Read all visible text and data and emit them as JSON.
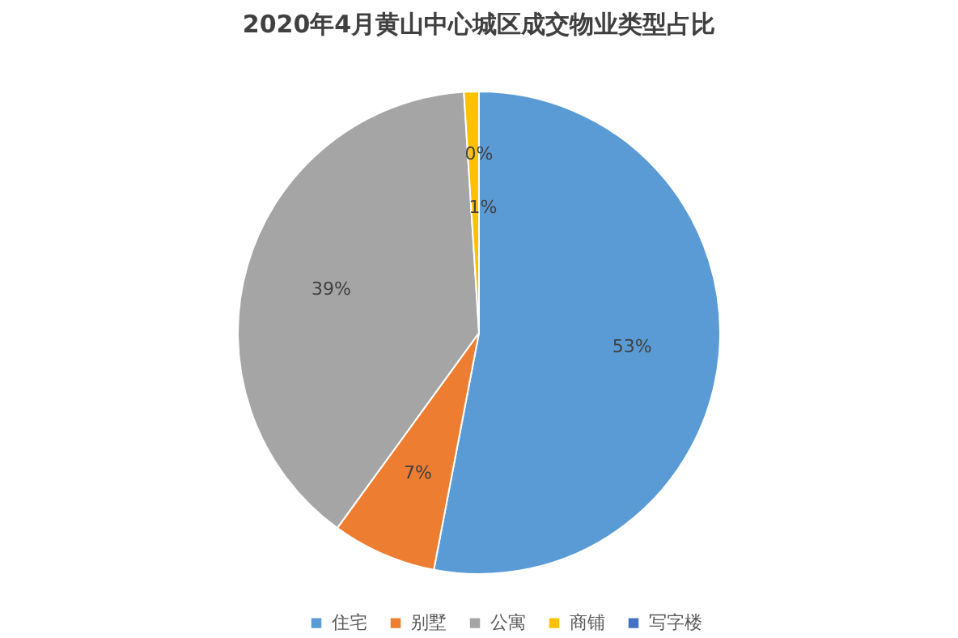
{
  "chart_data": {
    "type": "pie",
    "title": "2020年4月黄山中心城区成交物业类型占比",
    "categories": [
      "住宅",
      "别墅",
      "公寓",
      "商铺",
      "写字楼"
    ],
    "values": [
      53,
      7,
      39,
      1,
      0
    ],
    "colors": [
      "#5b9bd5",
      "#ed7d31",
      "#a5a5a5",
      "#ffc000",
      "#4472c4"
    ],
    "value_labels": [
      "53%",
      "7%",
      "39%",
      "1%",
      "0%"
    ],
    "legend": "bottom"
  }
}
